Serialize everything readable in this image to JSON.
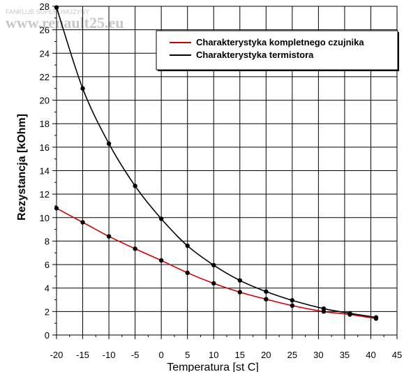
{
  "watermark": {
    "line1": "FANKLUB SUPERLIMUZYNY",
    "line2": "www.renault25.eu"
  },
  "chart_data": {
    "type": "line",
    "title": "",
    "xlabel": "Temperatura [st C]",
    "ylabel": "Rezystancja [kOhm]",
    "xlim": [
      -20,
      45
    ],
    "ylim": [
      0,
      28
    ],
    "xticks": [
      "-20",
      "-15",
      "-10",
      "-5",
      "0",
      "5",
      "10",
      "15",
      "20",
      "25",
      "30",
      "35",
      "40",
      "45"
    ],
    "yticks": [
      "0",
      "2",
      "4",
      "6",
      "8",
      "10",
      "12",
      "14",
      "16",
      "18",
      "20",
      "22",
      "24",
      "26",
      "28"
    ],
    "grid": true,
    "legend_position": "top-right",
    "series": [
      {
        "name": "Charakterystyka kompletnego czujnika",
        "color": "#d00000",
        "x": [
          -20,
          -15,
          -10,
          -5,
          0,
          5,
          10,
          15,
          20,
          25,
          31,
          36,
          41
        ],
        "y": [
          10.8,
          9.6,
          8.4,
          7.35,
          6.35,
          5.3,
          4.4,
          3.65,
          3.05,
          2.5,
          2.0,
          1.75,
          1.4
        ]
      },
      {
        "name": "Charakterystyka termistora",
        "color": "#000000",
        "x": [
          -20,
          -15,
          -10,
          -5,
          0,
          5,
          10,
          15,
          20,
          25,
          31,
          36,
          41
        ],
        "y": [
          27.9,
          21.0,
          16.3,
          12.7,
          9.9,
          7.6,
          5.95,
          4.65,
          3.7,
          2.95,
          2.25,
          1.85,
          1.5
        ]
      }
    ]
  }
}
